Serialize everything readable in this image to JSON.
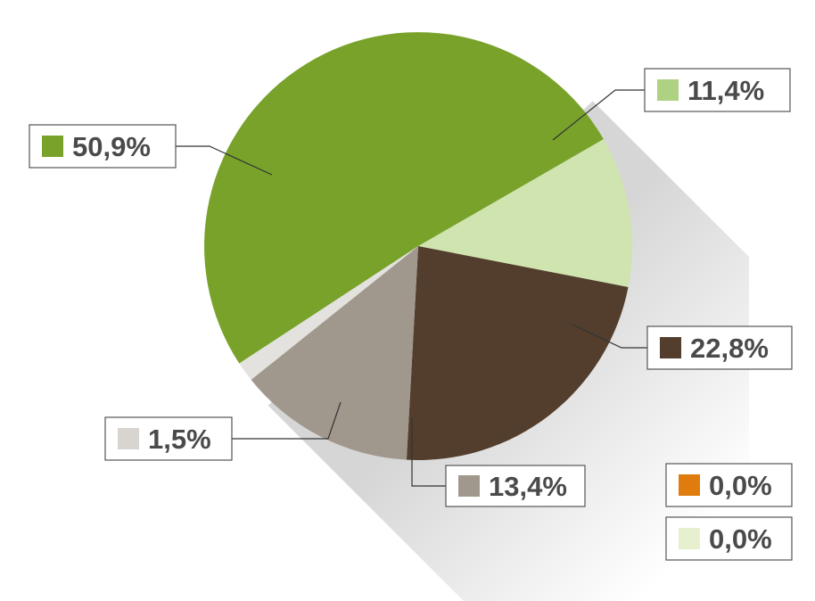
{
  "chart_data": {
    "type": "pie",
    "title": "",
    "slices": [
      {
        "label": "11,4%",
        "value": 11.4,
        "color": "#cfe4ae",
        "swatch": "#aed281"
      },
      {
        "label": "22,8%",
        "value": 22.8,
        "color": "#533e2d",
        "swatch": "#533e2d"
      },
      {
        "label": "13,4%",
        "value": 13.4,
        "color": "#a1988d",
        "swatch": "#a1988d"
      },
      {
        "label": "1,5%",
        "value": 1.5,
        "color": "#e3e2de",
        "swatch": "#d8d4cf"
      },
      {
        "label": "50,9%",
        "value": 50.9,
        "color": "#78a22a",
        "swatch": "#78a22a"
      },
      {
        "label": "0,0%",
        "value": 0.0,
        "color": "#e07b0e",
        "swatch": "#e07b0e"
      },
      {
        "label": "0,0%",
        "value": 0.0,
        "color": "#e6f0cf",
        "swatch": "#e6f0cf"
      }
    ],
    "legend": "none",
    "grid": false
  }
}
